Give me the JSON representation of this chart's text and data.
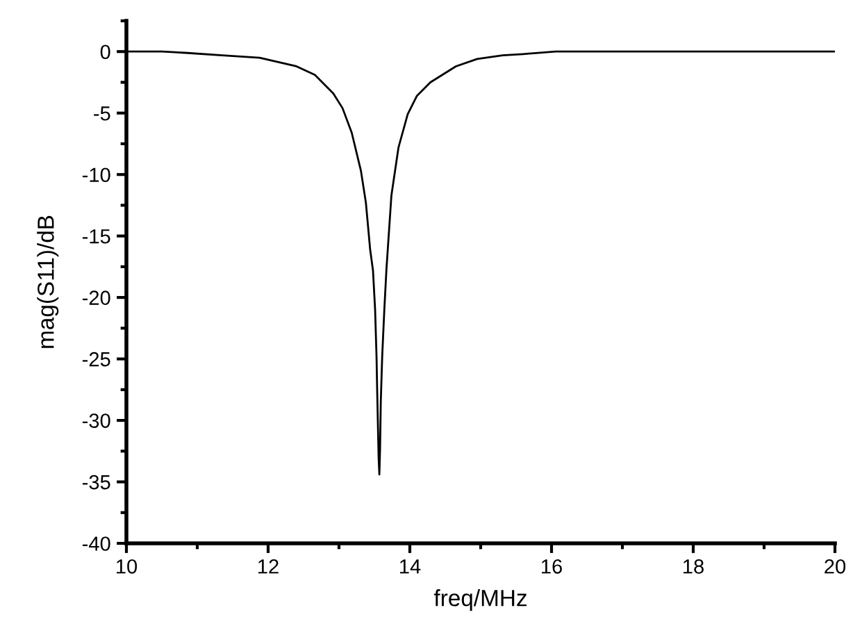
{
  "chart_data": {
    "type": "line",
    "xlabel": "freq/MHz",
    "ylabel": "mag(S11)/dB",
    "color": "#000000",
    "line_style": "solid",
    "x": [
      10,
      10.5,
      10.83,
      11.35,
      11.88,
      12.4,
      12.66,
      12.92,
      13.05,
      13.18,
      13.31,
      13.38,
      13.44,
      13.48,
      13.51,
      13.53,
      13.54,
      13.56,
      13.57,
      13.58,
      13.59,
      13.61,
      13.64,
      13.67,
      13.74,
      13.84,
      13.97,
      14.1,
      14.29,
      14.65,
      14.95,
      15.31,
      15.6,
      16.06,
      17,
      18,
      19,
      20
    ],
    "values": [
      0,
      0,
      -0.1,
      -0.3,
      -0.5,
      -1.2,
      -1.9,
      -3.4,
      -4.6,
      -6.6,
      -9.7,
      -12.3,
      -16.1,
      -17.8,
      -21.0,
      -24.8,
      -27.8,
      -33.1,
      -34.4,
      -32.3,
      -28.5,
      -24.8,
      -21.0,
      -17.7,
      -11.7,
      -7.8,
      -5.1,
      -3.6,
      -2.5,
      -1.2,
      -0.6,
      -0.3,
      -0.2,
      0,
      0,
      0,
      0,
      0
    ],
    "xlim": [
      10,
      20
    ],
    "ylim": [
      -40,
      2.5
    ],
    "xticks": [
      10,
      {
        "value": 11,
        "label": null
      },
      12,
      {
        "value": 13,
        "label": null
      },
      14,
      {
        "value": 15,
        "label": null
      },
      16,
      {
        "value": 17,
        "label": null
      },
      18,
      {
        "value": 19,
        "label": null
      },
      20
    ],
    "yticks": [
      -40,
      {
        "value": -37.5,
        "label": null
      },
      -35,
      {
        "value": -32.5,
        "label": null
      },
      -30,
      {
        "value": -27.5,
        "label": null
      },
      -25,
      {
        "value": -22.5,
        "label": null
      },
      -20,
      {
        "value": -17.5,
        "label": null
      },
      -15,
      {
        "value": -12.5,
        "label": null
      },
      -10,
      {
        "value": -7.5,
        "label": null
      },
      -5,
      {
        "value": -2.5,
        "label": null
      },
      0,
      {
        "value": 2.5,
        "label": null
      }
    ]
  }
}
